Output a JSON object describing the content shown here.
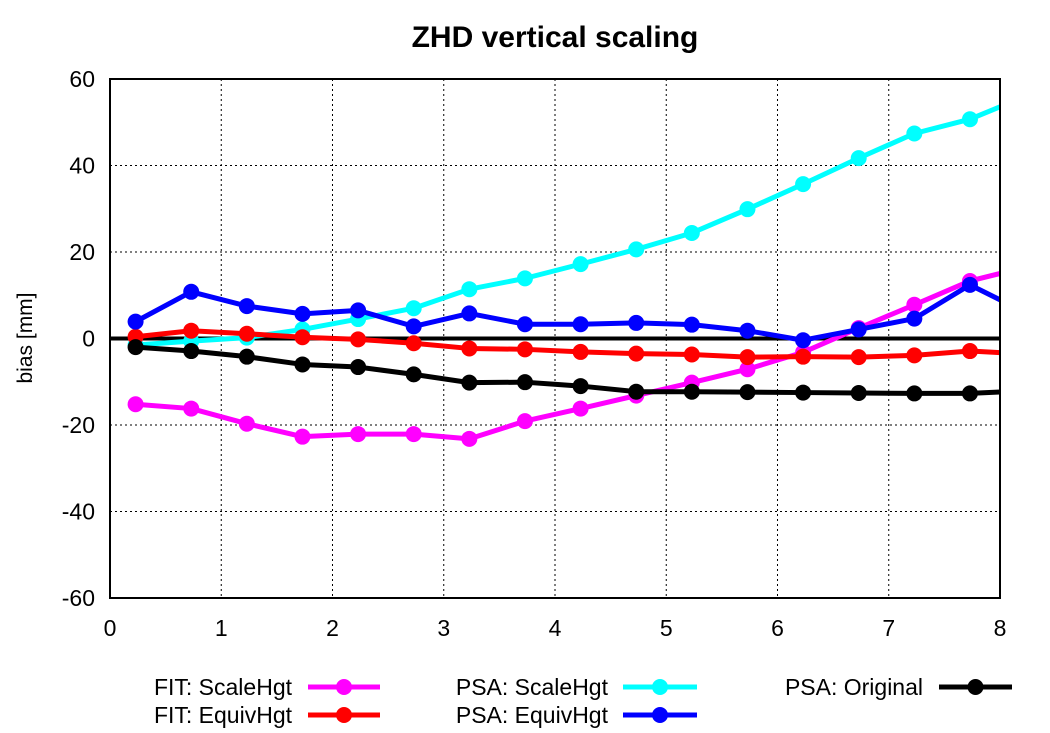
{
  "chart_data": {
    "type": "line",
    "title": "ZHD vertical scaling",
    "xlabel": "",
    "ylabel": "bias [mm]",
    "xlim": [
      0,
      8
    ],
    "ylim": [
      -60,
      60
    ],
    "x_ticks": [
      "0",
      "1",
      "2",
      "3",
      "4",
      "5",
      "6",
      "7",
      "8"
    ],
    "y_ticks": [
      "-60",
      "-40",
      "-20",
      "0",
      "20",
      "40",
      "60"
    ],
    "grid": true,
    "zero_line": true,
    "legend_position": "bottom",
    "x": [
      0.23,
      0.73,
      1.23,
      1.73,
      2.23,
      2.73,
      3.23,
      3.73,
      4.23,
      4.73,
      5.23,
      5.73,
      6.23,
      6.73,
      7.23,
      7.73,
      8.23
    ],
    "series": [
      {
        "name": "FIT: ScaleHgt",
        "color": "#ff00ff",
        "values": [
          -15.2,
          -16.2,
          -19.7,
          -22.7,
          -22.1,
          -22.1,
          -23.2,
          -19.1,
          -16.2,
          -13.2,
          -10.2,
          -7.1,
          -3.2,
          2.4,
          7.8,
          13.3,
          16.5
        ]
      },
      {
        "name": "FIT: EquivHgt",
        "color": "#ff0000",
        "values": [
          0.4,
          1.8,
          1.1,
          0.3,
          -0.2,
          -1.1,
          -2.3,
          -2.5,
          -3.1,
          -3.5,
          -3.7,
          -4.3,
          -4.2,
          -4.3,
          -3.9,
          -2.9,
          -3.6
        ]
      },
      {
        "name": "PSA: ScaleHgt",
        "color": "#00ffff",
        "values": [
          -1.5,
          -0.6,
          0.2,
          2.1,
          4.5,
          7.0,
          11.4,
          13.9,
          17.2,
          20.6,
          24.4,
          29.9,
          35.7,
          41.7,
          47.4,
          50.7,
          56.0
        ]
      },
      {
        "name": "PSA: EquivHgt",
        "color": "#0000ff",
        "values": [
          3.9,
          10.8,
          7.5,
          5.7,
          6.5,
          2.8,
          5.8,
          3.3,
          3.3,
          3.6,
          3.2,
          1.8,
          -0.4,
          2.1,
          4.6,
          12.4,
          6.0
        ]
      },
      {
        "name": "PSA: Original",
        "color": "#000000",
        "values": [
          -2.0,
          -2.9,
          -4.2,
          -6.0,
          -6.6,
          -8.3,
          -10.2,
          -10.1,
          -11.0,
          -12.3,
          -12.3,
          -12.4,
          -12.5,
          -12.6,
          -12.7,
          -12.7,
          -12.1
        ]
      }
    ]
  }
}
